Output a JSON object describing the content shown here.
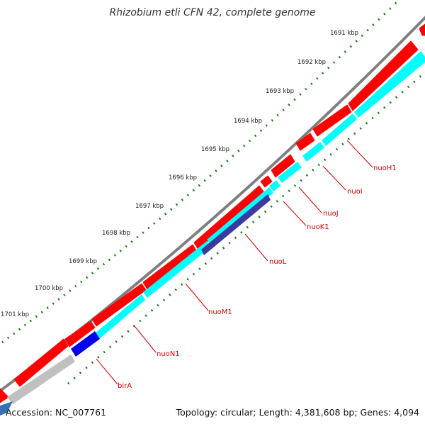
{
  "title": "Rhizobium etli CFN 42, complete genome",
  "footer": {
    "accession": "Accession: NC_007761",
    "summary": "Topology: circular; Length: 4,381,608 bp; Genes: 4,094"
  },
  "ruler": {
    "ticks": [
      {
        "label": "1691 kbp"
      },
      {
        "label": "1692 kbp"
      },
      {
        "label": "1693 kbp"
      },
      {
        "label": "1694 kbp"
      },
      {
        "label": "1695 kbp"
      },
      {
        "label": "1696 kbp"
      },
      {
        "label": "1697 kbp"
      },
      {
        "label": "1698 kbp"
      },
      {
        "label": "1699 kbp"
      },
      {
        "label": "1700 kbp"
      },
      {
        "label": "1701 kbp"
      }
    ]
  },
  "genes": [
    {
      "label": "nuoH1"
    },
    {
      "label": "nuoI"
    },
    {
      "label": "nuoJ"
    },
    {
      "label": "nuoK1"
    },
    {
      "label": "nuoL"
    },
    {
      "label": "nuoM1"
    },
    {
      "label": "nuoN1"
    },
    {
      "label": "birA"
    }
  ],
  "colors": {
    "cds": "#ff0000",
    "gene": "#00ffff",
    "backbone": "#808080",
    "ruler_dots": "#1a7a1a",
    "label": "#cc0000"
  }
}
